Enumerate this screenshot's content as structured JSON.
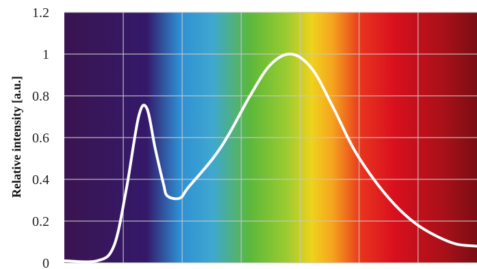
{
  "chart_data": {
    "type": "line",
    "title": "",
    "xlabel": "",
    "ylabel": "Relative intensity [a.u.]",
    "ylim": [
      0,
      1.2
    ],
    "yticks": [
      "0",
      "0.2",
      "0.4",
      "0.6",
      "0.8",
      "1",
      "1.2"
    ],
    "grid": true,
    "background": "visible-spectrum-gradient",
    "spectrum_colors": [
      "#3a1450",
      "#34196a",
      "#2e8fd4",
      "#3fa8d0",
      "#5cb83a",
      "#9ccc30",
      "#f0d21c",
      "#f5a41e",
      "#e8331e",
      "#d8101e",
      "#a81018",
      "#7a0e14"
    ],
    "line_color": "#ffffff",
    "series": [
      {
        "x": [
          0,
          0.08,
          0.12,
          0.15,
          0.18,
          0.2,
          0.22,
          0.24,
          0.25,
          0.28,
          0.3,
          0.36,
          0.4,
          0.45,
          0.5,
          0.55,
          0.6,
          0.65,
          0.7,
          0.75,
          0.8,
          0.85,
          0.9,
          0.95,
          1.0
        ],
        "values": [
          0.01,
          0.01,
          0.08,
          0.35,
          0.7,
          0.74,
          0.55,
          0.38,
          0.32,
          0.31,
          0.36,
          0.5,
          0.62,
          0.8,
          0.95,
          1.0,
          0.93,
          0.75,
          0.55,
          0.4,
          0.28,
          0.19,
          0.13,
          0.09,
          0.08
        ]
      }
    ]
  }
}
